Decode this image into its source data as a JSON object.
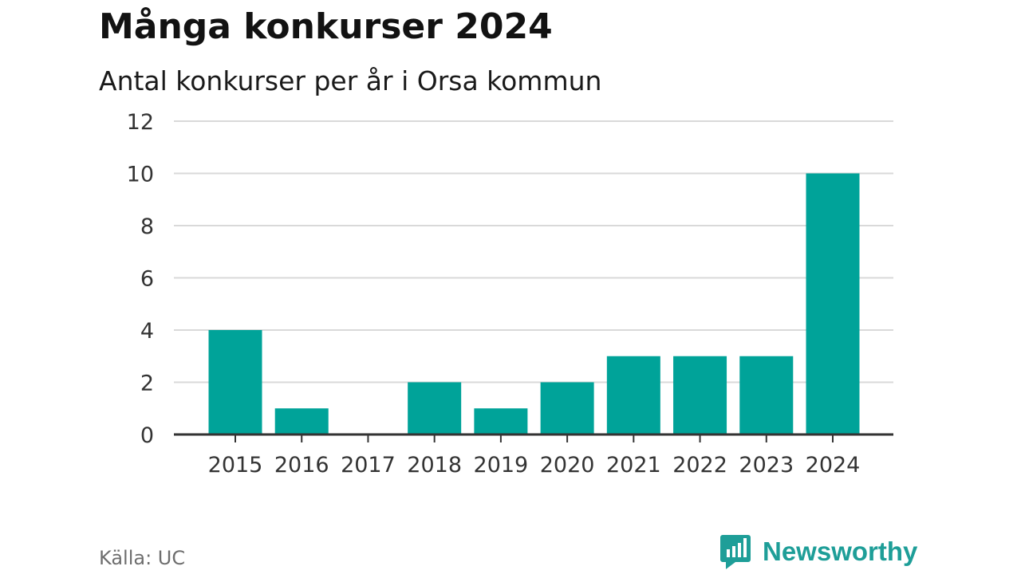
{
  "header": {
    "title": "Många konkurser 2024",
    "subtitle": "Antal konkurser per år i Orsa kommun"
  },
  "footer": {
    "source": "Källa: UC",
    "brand": "Newsworthy"
  },
  "colors": {
    "bar": "#00a399",
    "grid": "#d9d9d9",
    "axis": "#333333",
    "brand": "#1e9e98"
  },
  "icons": {
    "brand_logo": "newsworthy-logo-icon"
  },
  "chart_data": {
    "type": "bar",
    "title": "Många konkurser 2024",
    "subtitle": "Antal konkurser per år i Orsa kommun",
    "categories": [
      "2015",
      "2016",
      "2017",
      "2018",
      "2019",
      "2020",
      "2021",
      "2022",
      "2023",
      "2024"
    ],
    "values": [
      4,
      1,
      0,
      2,
      1,
      2,
      3,
      3,
      3,
      10
    ],
    "xlabel": "",
    "ylabel": "",
    "ylim": [
      0,
      12
    ],
    "yticks": [
      0,
      2,
      4,
      6,
      8,
      10,
      12
    ],
    "grid": true,
    "legend": "none"
  }
}
